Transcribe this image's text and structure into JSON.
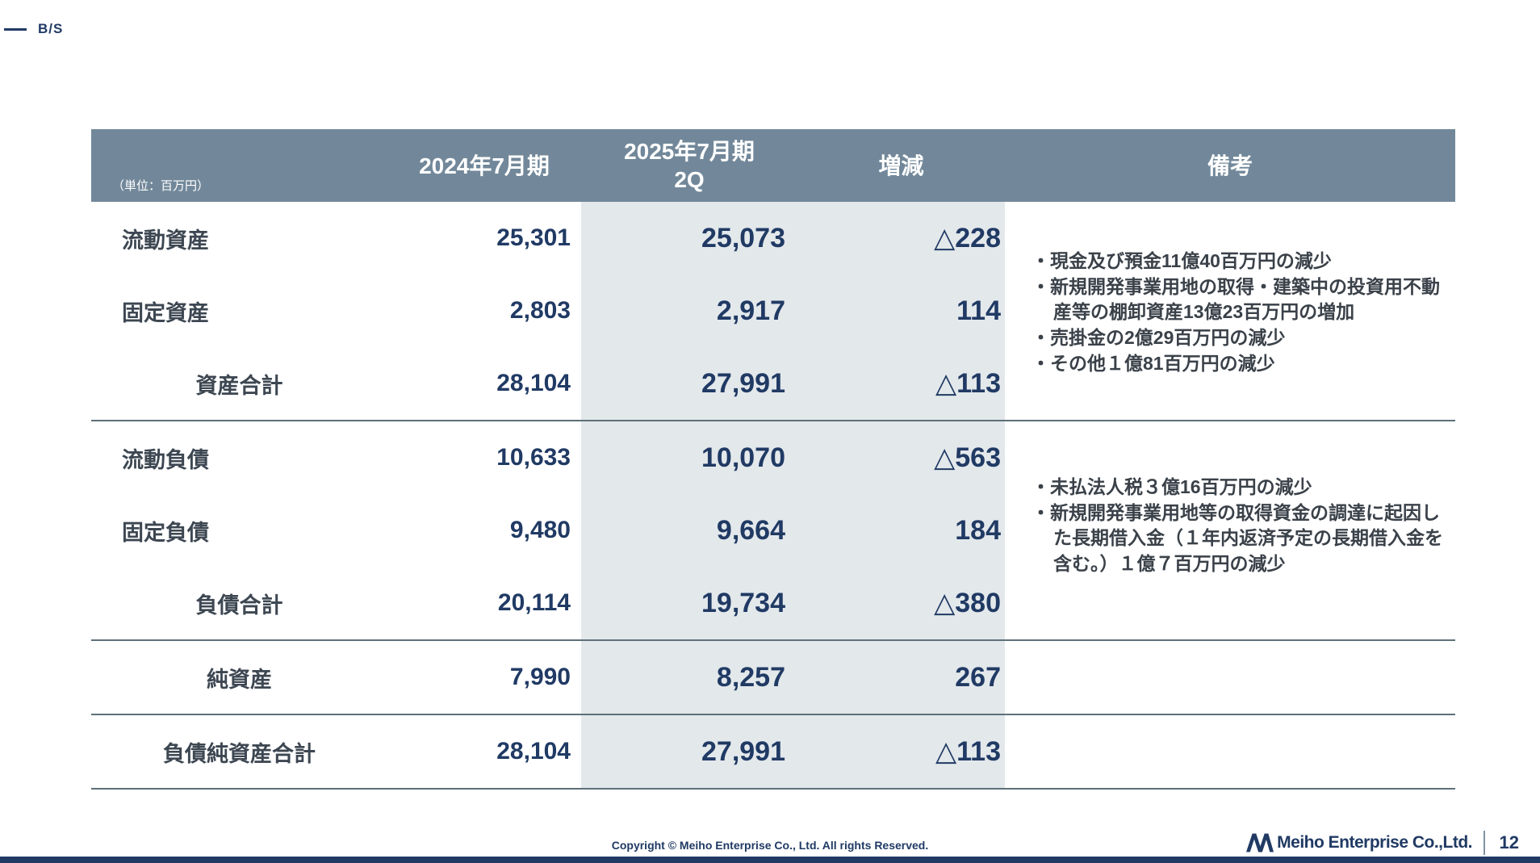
{
  "slide": {
    "title": "B/S",
    "copyright": "Copyright © Meiho Enterprise Co., Ltd. All rights Reserved.",
    "logo_text": "Meiho Enterprise Co.,Ltd.",
    "page_number": "12"
  },
  "table": {
    "header": {
      "unit": "（単位：百万円）",
      "fy2024": "2024年7月期",
      "fy2025_line1": "2025年7月期",
      "fy2025_line2": "2Q",
      "change": "増減",
      "notes": "備考"
    },
    "rows": [
      {
        "label": "流動資産",
        "fy2024": "25,301",
        "fy2025_2q": "25,073",
        "change": "△228",
        "total": false,
        "divider_after": false
      },
      {
        "label": "固定資産",
        "fy2024": "2,803",
        "fy2025_2q": "2,917",
        "change": "114",
        "total": false,
        "divider_after": false
      },
      {
        "label": "資産合計",
        "fy2024": "28,104",
        "fy2025_2q": "27,991",
        "change": "△113",
        "total": true,
        "divider_after": true
      },
      {
        "label": "流動負債",
        "fy2024": "10,633",
        "fy2025_2q": "10,070",
        "change": "△563",
        "total": false,
        "divider_after": false
      },
      {
        "label": "固定負債",
        "fy2024": "9,480",
        "fy2025_2q": "9,664",
        "change": "184",
        "total": false,
        "divider_after": false
      },
      {
        "label": "負債合計",
        "fy2024": "20,114",
        "fy2025_2q": "19,734",
        "change": "△380",
        "total": true,
        "divider_after": true
      },
      {
        "label": "純資産",
        "fy2024": "7,990",
        "fy2025_2q": "8,257",
        "change": "267",
        "total": true,
        "divider_after": true
      },
      {
        "label": "負債純資産合計",
        "fy2024": "28,104",
        "fy2025_2q": "27,991",
        "change": "△113",
        "total": true,
        "divider_after": true
      }
    ],
    "notes_assets": [
      "現金及び預金11億40百万円の減少",
      "新規開発事業用地の取得・建築中の投資用不動産等の棚卸資産13億23百万円の増加",
      "売掛金の2億29百万円の減少",
      "その他１億81百万円の減少"
    ],
    "notes_liabilities": [
      "未払法人税３億16百万円の減少",
      "新規開発事業用地等の取得資金の調達に起因した長期借入金（１年内返済予定の長期借入金を含む。）１億７百万円の減少"
    ],
    "bullet": "・"
  },
  "colors": {
    "header_bg": "#72889a",
    "shade_bg": "#e3e8eb",
    "accent_navy": "#203a64",
    "label_text": "#3d4752",
    "notes_text": "#3a4149",
    "divider": "#5e7079"
  }
}
